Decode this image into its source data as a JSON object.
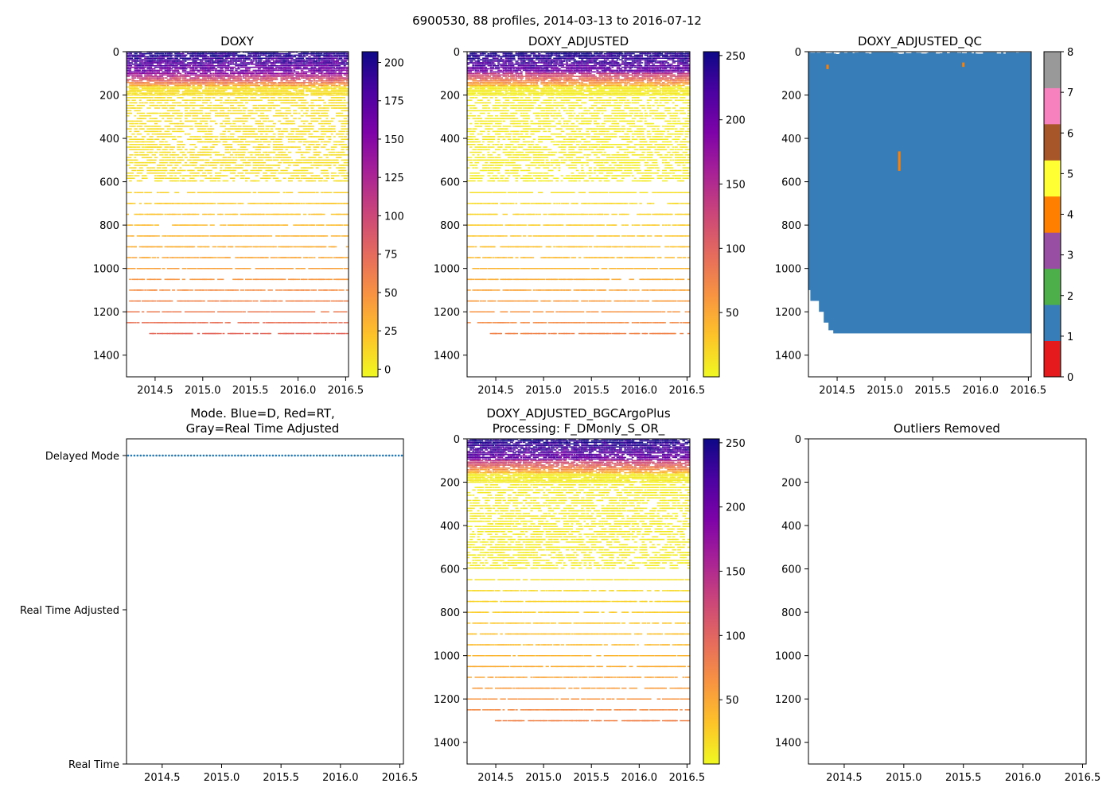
{
  "figure": {
    "suptitle": "6900530, 88 profiles, 2014-03-13 to 2016-07-12"
  },
  "palettes": {
    "plasma_r": [
      "#f0f921",
      "#fdc328",
      "#f89441",
      "#e56b5d",
      "#cb4679",
      "#a82296",
      "#7e03a8",
      "#4c02a1",
      "#0d0887"
    ],
    "qc_colors": [
      "#e41a1c",
      "#377eb8",
      "#4daf4a",
      "#984ea3",
      "#ff7f00",
      "#ffff33",
      "#a65628",
      "#f781bf",
      "#999999"
    ],
    "mode_marker": "#1f77b4"
  },
  "chart_data": [
    {
      "id": "doxy",
      "type": "heatmap",
      "title": "DOXY",
      "x_ticks": [
        "2014.5",
        "2015.0",
        "2015.5",
        "2016.0",
        "2016.5"
      ],
      "xlim": [
        2014.2,
        2016.53
      ],
      "ylim": [
        1500,
        0
      ],
      "y_ticks": [
        "0",
        "200",
        "400",
        "600",
        "800",
        "1000",
        "1200",
        "1400"
      ],
      "colorbar": {
        "min": -5,
        "max": 207,
        "ticks": [
          "0",
          "25",
          "50",
          "75",
          "100",
          "125",
          "150",
          "175",
          "200"
        ]
      },
      "depth_range": [
        0,
        1300
      ],
      "value_range_estimate": [
        0,
        205
      ]
    },
    {
      "id": "doxy_adjusted",
      "type": "heatmap",
      "title": "DOXY_ADJUSTED",
      "x_ticks": [
        "2014.5",
        "2015.0",
        "2015.5",
        "2016.0",
        "2016.5"
      ],
      "xlim": [
        2014.2,
        2016.53
      ],
      "ylim": [
        1500,
        0
      ],
      "y_ticks": [
        "0",
        "200",
        "400",
        "600",
        "800",
        "1000",
        "1200",
        "1400"
      ],
      "colorbar": {
        "min": 0,
        "max": 253,
        "ticks": [
          "50",
          "100",
          "150",
          "200",
          "250"
        ]
      },
      "depth_range": [
        0,
        1300
      ],
      "value_range_estimate": [
        0,
        253
      ]
    },
    {
      "id": "doxy_adjusted_qc",
      "type": "heatmap",
      "title": "DOXY_ADJUSTED_QC",
      "x_ticks": [
        "2014.5",
        "2015.0",
        "2015.5",
        "2016.0",
        "2016.5"
      ],
      "xlim": [
        2014.2,
        2016.53
      ],
      "ylim": [
        1500,
        0
      ],
      "y_ticks": [
        "0",
        "200",
        "400",
        "600",
        "800",
        "1000",
        "1200",
        "1400"
      ],
      "colorbar": {
        "min": 0,
        "max": 8,
        "ticks": [
          "0",
          "1",
          "2",
          "3",
          "4",
          "5",
          "6",
          "7",
          "8"
        ]
      },
      "dominant_flag": 1,
      "flag4_spots": [
        {
          "x": 2014.4,
          "depth": [
            60,
            80
          ]
        },
        {
          "x": 2015.82,
          "depth": [
            50,
            70
          ]
        },
        {
          "x": 2015.15,
          "depth": [
            460,
            550
          ]
        }
      ],
      "max_depth_profile": [
        {
          "x_range": [
            2014.2,
            2014.22
          ],
          "depth": 1100
        },
        {
          "x_range": [
            2014.22,
            2014.31
          ],
          "depth": 1150
        },
        {
          "x_range": [
            2014.31,
            2014.36
          ],
          "depth": 1200
        },
        {
          "x_range": [
            2014.36,
            2014.41
          ],
          "depth": 1250
        },
        {
          "x_range": [
            2014.41,
            2014.46
          ],
          "depth": 1285
        },
        {
          "x_range": [
            2014.46,
            2016.53
          ],
          "depth": 1300
        }
      ]
    },
    {
      "id": "mode",
      "type": "scatter",
      "title_lines": [
        "Mode. Blue=D, Red=RT,",
        "Gray=Real Time Adjusted"
      ],
      "x_ticks": [
        "2014.5",
        "2015.0",
        "2015.5",
        "2016.0",
        "2016.5"
      ],
      "xlim": [
        2014.2,
        2016.53
      ],
      "y_categories": [
        "Delayed Mode",
        "Real Time Adjusted",
        "Real Time"
      ],
      "series": [
        {
          "name": "D",
          "category": "Delayed Mode",
          "x_range": [
            2014.2,
            2016.53
          ],
          "n_points": 88
        }
      ]
    },
    {
      "id": "bgc_plus",
      "type": "heatmap",
      "title_lines": [
        "DOXY_ADJUSTED_BGCArgoPlus",
        "Processing: F_DMonly_S_OR_"
      ],
      "x_ticks": [
        "2014.5",
        "2015.0",
        "2015.5",
        "2016.0",
        "2016.5"
      ],
      "xlim": [
        2014.2,
        2016.53
      ],
      "ylim": [
        1500,
        0
      ],
      "y_ticks": [
        "0",
        "200",
        "400",
        "600",
        "800",
        "1000",
        "1200",
        "1400"
      ],
      "colorbar": {
        "min": 0,
        "max": 253,
        "ticks": [
          "50",
          "100",
          "150",
          "200",
          "250"
        ]
      },
      "depth_range": [
        0,
        1300
      ]
    },
    {
      "id": "outliers",
      "type": "scatter",
      "title": "Outliers Removed",
      "x_ticks": [
        "2014.5",
        "2015.0",
        "2015.5",
        "2016.0",
        "2016.5"
      ],
      "xlim": [
        2014.2,
        2016.53
      ],
      "ylim": [
        1500,
        0
      ],
      "y_ticks": [
        "0",
        "200",
        "400",
        "600",
        "800",
        "1000",
        "1200",
        "1400"
      ],
      "series": []
    }
  ]
}
